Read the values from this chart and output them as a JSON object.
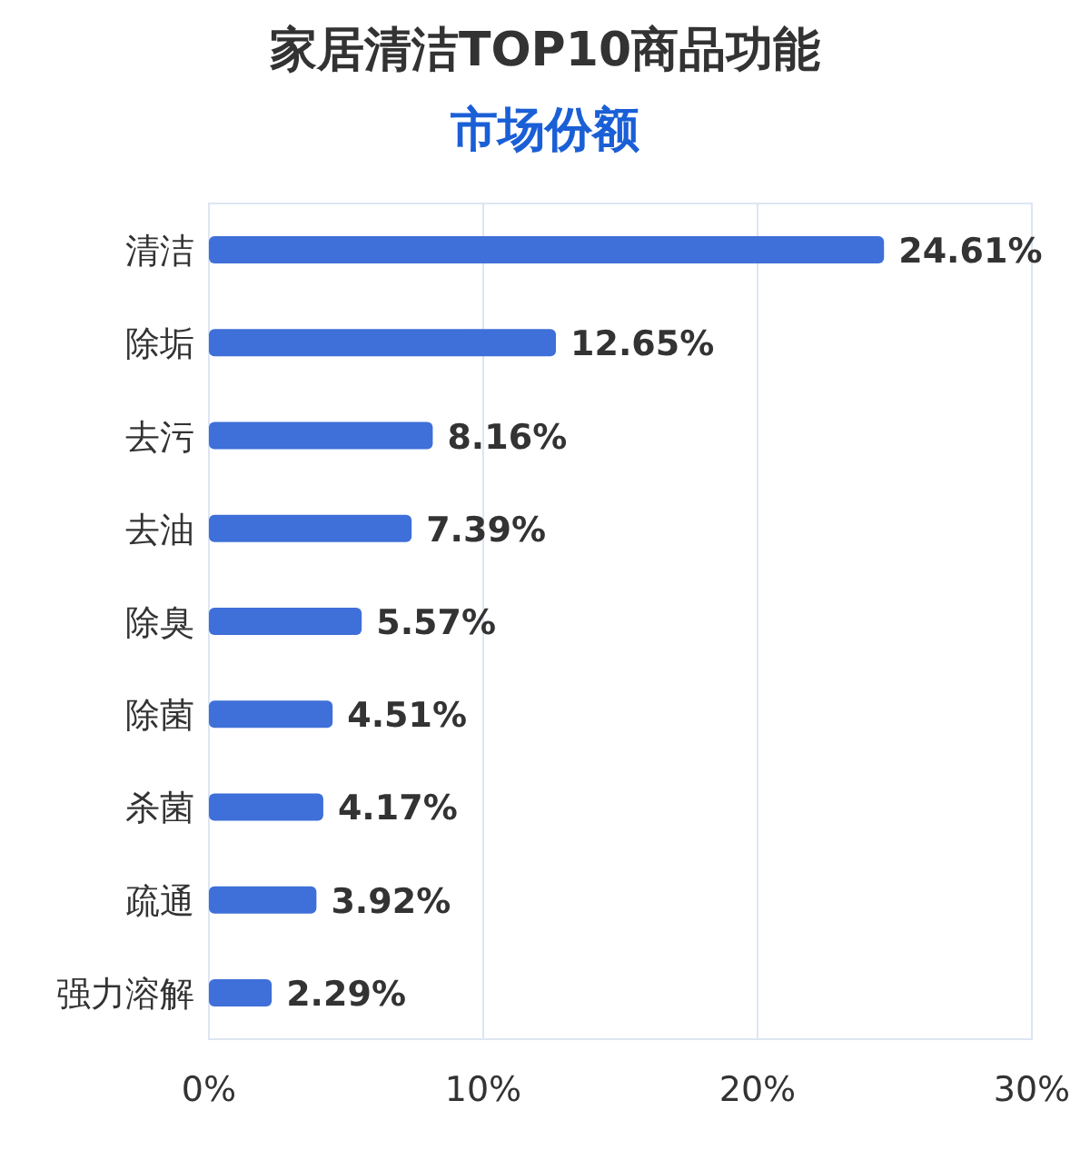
{
  "chart_data": {
    "type": "bar",
    "orientation": "horizontal",
    "title": "家居清洁TOP10商品功能",
    "subtitle": "市场份额",
    "categories": [
      "清洁",
      "除垢",
      "去污",
      "去油",
      "除臭",
      "除菌",
      "杀菌",
      "疏通",
      "强力溶解"
    ],
    "values": [
      24.61,
      12.65,
      8.16,
      7.39,
      5.57,
      4.51,
      4.17,
      3.92,
      2.29
    ],
    "value_labels": [
      "24.61%",
      "12.65%",
      "8.16%",
      "7.39%",
      "5.57%",
      "4.51%",
      "4.17%",
      "3.92%",
      "2.29%"
    ],
    "color": "#3f6fd8",
    "xlim": [
      0,
      30
    ],
    "xticks": [
      {
        "value": 0,
        "label": "0%"
      },
      {
        "value": 10,
        "label": "10%"
      },
      {
        "value": 20,
        "label": "20%"
      },
      {
        "value": 30,
        "label": "30%"
      }
    ],
    "grid": "x"
  }
}
